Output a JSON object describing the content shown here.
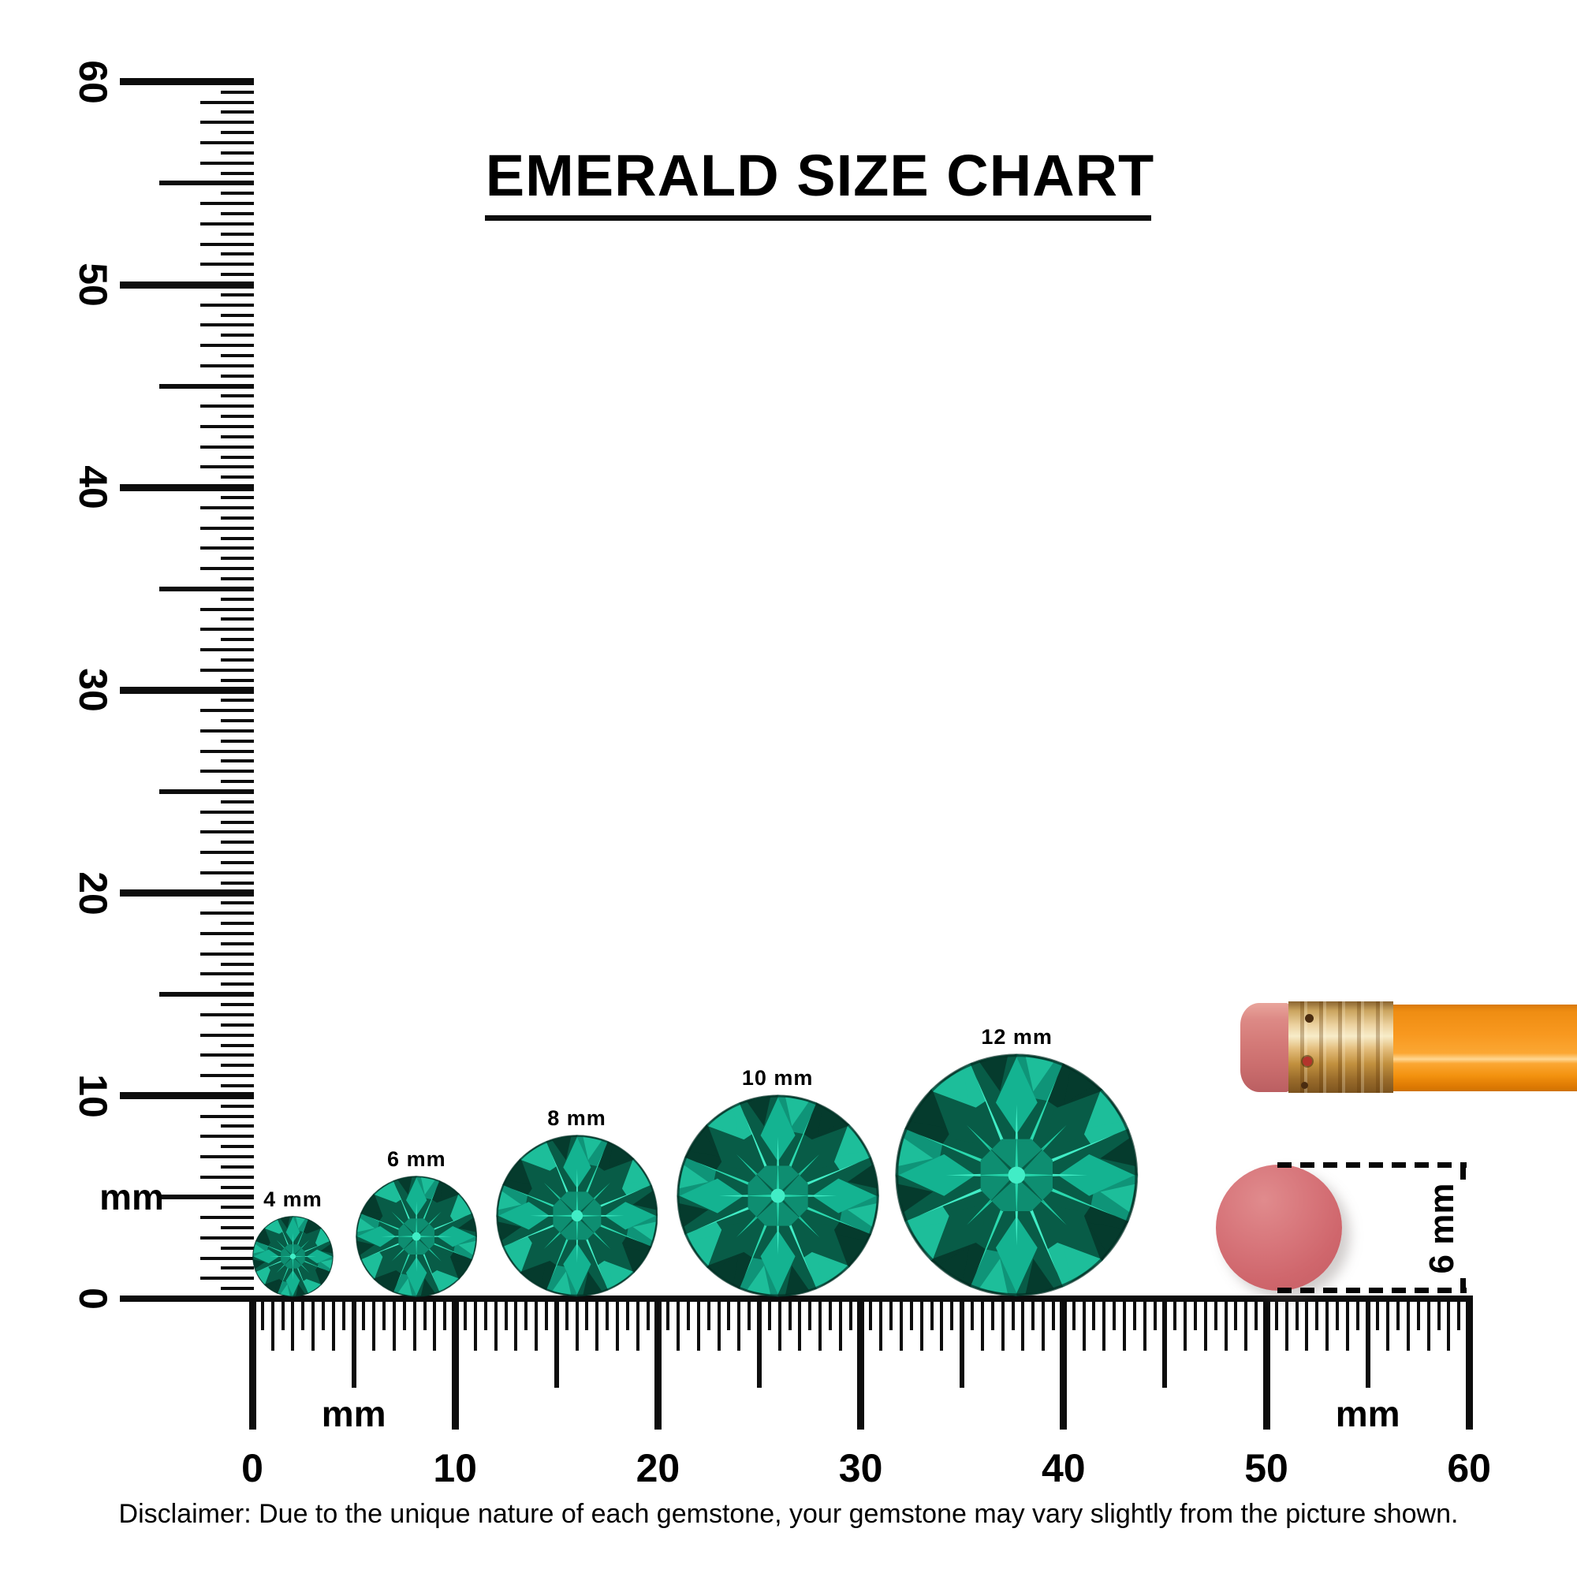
{
  "title": {
    "text": "EMERALD SIZE CHART"
  },
  "rulers": {
    "range_mm": [
      0,
      60
    ],
    "minor_step_mm": 0.5,
    "unit": "mm",
    "vertical": {
      "tick_labels": [
        "0",
        "10",
        "20",
        "30",
        "40",
        "50",
        "60"
      ],
      "unit_label_position_mm": 5
    },
    "horizontal": {
      "tick_labels": [
        "0",
        "10",
        "20",
        "30",
        "40",
        "50",
        "60"
      ],
      "unit_label_positions_mm": [
        5,
        55
      ]
    }
  },
  "gems": [
    {
      "label": "4 mm",
      "size_mm": 4,
      "position_mm": 2.0
    },
    {
      "label": "6 mm",
      "size_mm": 6,
      "position_mm": 8.1
    },
    {
      "label": "8 mm",
      "size_mm": 8,
      "position_mm": 16.0
    },
    {
      "label": "10 mm",
      "size_mm": 10,
      "position_mm": 25.9
    },
    {
      "label": "12 mm",
      "size_mm": 12,
      "position_mm": 37.7
    }
  ],
  "eraser_reference": {
    "label": "6 mm",
    "diameter_mm": 6,
    "position_mm": 50.6
  },
  "disclaimer": "Disclaimer: Due to the unique nature of each gemstone, your gemstone may vary slightly from the picture shown.",
  "colors": {
    "ink": "#0d0d0d",
    "gem_bright": "#41edc6",
    "gem_light": "#1dbe9a",
    "gem_mid": "#0f9478",
    "gem_dark": "#085c47",
    "gem_darkest": "#053b2d",
    "eraser_pink": "#d5686d",
    "pencil_orange": "#f89313",
    "ferrule_gold": "#d9a75f"
  },
  "chart_data": {
    "type": "table",
    "title": "EMERALD SIZE CHART",
    "categories": [
      "4 mm emerald",
      "6 mm emerald",
      "8 mm emerald",
      "10 mm emerald",
      "12 mm emerald",
      "pencil eraser reference"
    ],
    "values": [
      4,
      6,
      8,
      10,
      12,
      6
    ],
    "xlabel": "mm",
    "ylabel": "mm",
    "axis_range_mm": [
      0,
      60
    ],
    "labeled_tick_step_mm": 10,
    "medium_tick_step_mm": 5,
    "minor_tick_step_mm": 0.5,
    "legend": "none",
    "grid": false
  }
}
